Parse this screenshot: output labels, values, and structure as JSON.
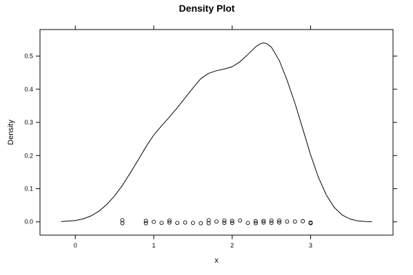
{
  "chart_data": {
    "type": "line",
    "title": "Density Plot",
    "xlabel": "x",
    "ylabel": "Density",
    "xlim": [
      -0.45,
      4.05
    ],
    "ylim": [
      -0.04,
      0.58
    ],
    "x_ticks": [
      0,
      1,
      2,
      3
    ],
    "x_tick_labels": [
      "0",
      "1",
      "2",
      "3"
    ],
    "y_ticks": [
      0.0,
      0.1,
      0.2,
      0.3,
      0.4,
      0.5
    ],
    "y_tick_labels": [
      "0.0",
      "0.1",
      "0.2",
      "0.3",
      "0.4",
      "0.5"
    ],
    "grid": false,
    "legend": "none",
    "series": [
      {
        "x": [
          -0.18,
          0.0,
          0.1,
          0.2,
          0.3,
          0.4,
          0.5,
          0.6,
          0.7,
          0.8,
          0.9,
          1.0,
          1.1,
          1.2,
          1.3,
          1.4,
          1.5,
          1.6,
          1.7,
          1.8,
          1.9,
          2.0,
          2.1,
          2.2,
          2.3,
          2.35,
          2.4,
          2.45,
          2.5,
          2.6,
          2.7,
          2.8,
          2.9,
          3.0,
          3.1,
          3.2,
          3.3,
          3.4,
          3.5,
          3.6,
          3.7,
          3.78
        ],
        "y": [
          0.001,
          0.004,
          0.009,
          0.018,
          0.032,
          0.052,
          0.078,
          0.11,
          0.147,
          0.186,
          0.226,
          0.262,
          0.29,
          0.316,
          0.344,
          0.374,
          0.404,
          0.432,
          0.448,
          0.456,
          0.461,
          0.468,
          0.483,
          0.505,
          0.528,
          0.536,
          0.54,
          0.536,
          0.527,
          0.487,
          0.427,
          0.358,
          0.28,
          0.202,
          0.134,
          0.081,
          0.044,
          0.021,
          0.009,
          0.003,
          0.001,
          0.0004
        ]
      }
    ],
    "points": {
      "x": [
        0.6,
        0.6,
        0.9,
        0.9,
        1.0,
        1.1,
        1.2,
        1.2,
        1.3,
        1.4,
        1.5,
        1.6,
        1.7,
        1.7,
        1.8,
        1.9,
        1.9,
        2.0,
        2.0,
        2.1,
        2.2,
        2.3,
        2.3,
        2.4,
        2.4,
        2.5,
        2.5,
        2.6,
        2.6,
        2.7,
        2.8,
        2.9,
        3.0,
        3.0
      ],
      "y": [
        0.005,
        -0.004,
        0.003,
        -0.004,
        0.0,
        -0.003,
        0.004,
        -0.002,
        -0.003,
        -0.002,
        -0.003,
        -0.004,
        0.005,
        -0.004,
        0.001,
        0.004,
        -0.003,
        0.003,
        -0.003,
        0.004,
        -0.003,
        0.002,
        -0.004,
        0.003,
        -0.002,
        0.004,
        -0.003,
        0.004,
        -0.002,
        0.001,
        0.001,
        0.002,
        -0.002,
        -0.004
      ]
    }
  }
}
